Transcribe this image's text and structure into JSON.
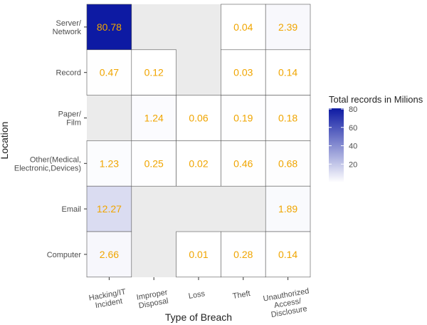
{
  "chart_data": {
    "type": "heatmap",
    "xlabel": "Type of Breach",
    "ylabel": "Location",
    "x_categories": [
      [
        "Hacking/IT",
        "Incident"
      ],
      [
        "Improper",
        "Disposal"
      ],
      [
        "Loss"
      ],
      [
        "Theft"
      ],
      [
        "Unauthorized",
        "Access/",
        "Disclosure"
      ]
    ],
    "y_categories": [
      [
        "Server/",
        "Network"
      ],
      [
        "Record"
      ],
      [
        "Paper/",
        "Film"
      ],
      [
        "Other(Medical,",
        "Electronic,Devices)"
      ],
      [
        "Email"
      ],
      [
        "Computer"
      ]
    ],
    "cells": [
      {
        "x": 0,
        "y": 0,
        "value": 80.78,
        "label": "80.78"
      },
      {
        "x": 3,
        "y": 0,
        "value": 0.04,
        "label": "0.04"
      },
      {
        "x": 4,
        "y": 0,
        "value": 2.39,
        "label": "2.39"
      },
      {
        "x": 0,
        "y": 1,
        "value": 0.47,
        "label": "0.47"
      },
      {
        "x": 1,
        "y": 1,
        "value": 0.12,
        "label": "0.12"
      },
      {
        "x": 3,
        "y": 1,
        "value": 0.03,
        "label": "0.03"
      },
      {
        "x": 4,
        "y": 1,
        "value": 0.14,
        "label": "0.14"
      },
      {
        "x": 1,
        "y": 2,
        "value": 1.24,
        "label": "1.24"
      },
      {
        "x": 2,
        "y": 2,
        "value": 0.06,
        "label": "0.06"
      },
      {
        "x": 3,
        "y": 2,
        "value": 0.19,
        "label": "0.19"
      },
      {
        "x": 4,
        "y": 2,
        "value": 0.18,
        "label": "0.18"
      },
      {
        "x": 0,
        "y": 3,
        "value": 1.23,
        "label": "1.23"
      },
      {
        "x": 1,
        "y": 3,
        "value": 0.25,
        "label": "0.25"
      },
      {
        "x": 2,
        "y": 3,
        "value": 0.02,
        "label": "0.02"
      },
      {
        "x": 3,
        "y": 3,
        "value": 0.46,
        "label": "0.46"
      },
      {
        "x": 4,
        "y": 3,
        "value": 0.68,
        "label": "0.68"
      },
      {
        "x": 0,
        "y": 4,
        "value": 12.27,
        "label": "12.27"
      },
      {
        "x": 4,
        "y": 4,
        "value": 1.89,
        "label": "1.89"
      },
      {
        "x": 0,
        "y": 5,
        "value": 2.66,
        "label": "2.66"
      },
      {
        "x": 2,
        "y": 5,
        "value": 0.01,
        "label": "0.01"
      },
      {
        "x": 3,
        "y": 5,
        "value": 0.28,
        "label": "0.28"
      },
      {
        "x": 4,
        "y": 5,
        "value": 0.14,
        "label": "0.14"
      }
    ],
    "color_scale": {
      "low": "#ffffff",
      "high": "#0d1aa3",
      "min": 0,
      "max": 80.78
    },
    "label_color": "#f0a500",
    "panel_background": "#ebebeb",
    "legend": {
      "title": "Total records in Milions",
      "ticks": [
        20,
        40,
        60,
        80
      ],
      "placement": "right"
    }
  }
}
